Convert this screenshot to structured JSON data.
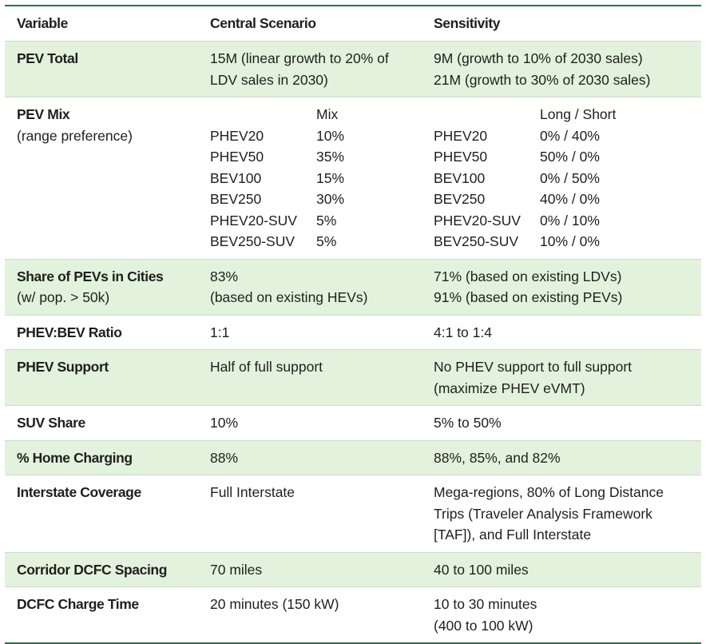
{
  "header": {
    "col1": "Variable",
    "col2": "Central Scenario",
    "col3": "Sensitivity"
  },
  "pev_total": {
    "label": "PEV Total",
    "central": [
      "15M (linear growth to 20% of",
      "LDV sales in 2030)"
    ],
    "sensitivity": [
      "9M (growth to 10% of 2030 sales)",
      "21M (growth to 30% of 2030 sales)"
    ]
  },
  "pev_mix": {
    "label": "PEV Mix",
    "sublabel": "(range preference)",
    "central_header": "Mix",
    "sensitivity_header": "Long / Short",
    "central_rows": [
      {
        "name": "PHEV20",
        "value": "10%"
      },
      {
        "name": "PHEV50",
        "value": "35%"
      },
      {
        "name": "BEV100",
        "value": "15%"
      },
      {
        "name": "BEV250",
        "value": "30%"
      },
      {
        "name": "PHEV20-SUV",
        "value": "5%"
      },
      {
        "name": "BEV250-SUV",
        "value": "5%"
      }
    ],
    "sensitivity_rows": [
      {
        "name": "PHEV20",
        "value": "0% / 40%"
      },
      {
        "name": "PHEV50",
        "value": "50% / 0%"
      },
      {
        "name": "BEV100",
        "value": "0% / 50%"
      },
      {
        "name": "BEV250",
        "value": "40% / 0%"
      },
      {
        "name": "PHEV20-SUV",
        "value": "0% / 10%"
      },
      {
        "name": "BEV250-SUV",
        "value": "10% / 0%"
      }
    ]
  },
  "share_cities": {
    "label": "Share of PEVs in Cities",
    "sublabel": "(w/ pop. > 50k)",
    "central": [
      "83%",
      "(based on existing HEVs)"
    ],
    "sensitivity": [
      "71% (based on existing LDVs)",
      "91% (based on existing PEVs)"
    ]
  },
  "phev_bev_ratio": {
    "label": "PHEV:BEV Ratio",
    "central": "1:1",
    "sensitivity": "4:1 to 1:4"
  },
  "phev_support": {
    "label": "PHEV Support",
    "central": "Half of full support",
    "sensitivity": [
      "No PHEV support to full support",
      "(maximize PHEV eVMT)"
    ]
  },
  "suv_share": {
    "label": "SUV Share",
    "central": "10%",
    "sensitivity": "5% to 50%"
  },
  "home_charging": {
    "label": "% Home Charging",
    "central": "88%",
    "sensitivity": "88%, 85%, and 82%"
  },
  "interstate": {
    "label": "Interstate Coverage",
    "central": "Full Interstate",
    "sensitivity": [
      "Mega-regions, 80% of Long Distance",
      "Trips (Traveler Analysis Framework",
      "[TAF]), and Full Interstate"
    ]
  },
  "dcfc_spacing": {
    "label": "Corridor DCFC Spacing",
    "central": "70 miles",
    "sensitivity": "40 to 100 miles"
  },
  "dcfc_time": {
    "label": "DCFC Charge Time",
    "central": "20 minutes (150 kW)",
    "sensitivity": [
      "10 to 30 minutes",
      "(400 to 100 kW)"
    ]
  },
  "colors": {
    "shade": "#e3f2dc",
    "rule": "#2f6e4a"
  }
}
